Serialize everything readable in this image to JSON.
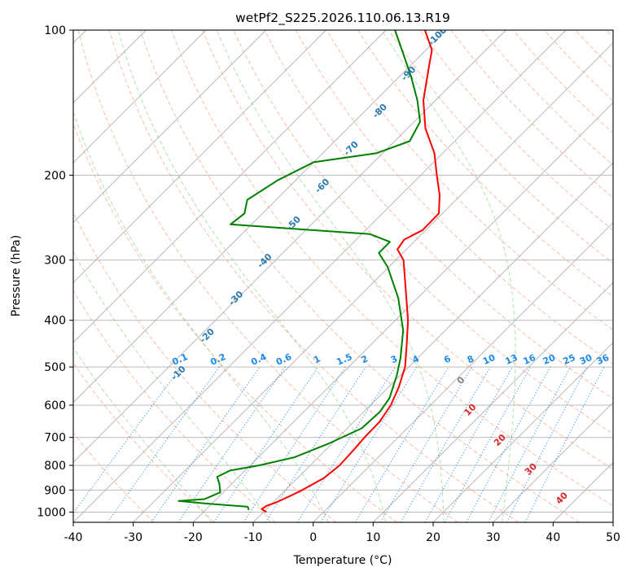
{
  "chart_data": {
    "type": "line",
    "title": "wetPf2_S225.2026.110.06.13.R19",
    "xlabel": "Temperature (°C)",
    "ylabel": "Pressure (hPa)",
    "xlim": [
      -40,
      50
    ],
    "ylim_pressure": [
      1050,
      100
    ],
    "y_scale": "log",
    "skew_description": "skew-T log-p diagram",
    "x_ticks": [
      -40,
      -30,
      -20,
      -10,
      0,
      10,
      20,
      30,
      40,
      50
    ],
    "y_ticks": [
      100,
      200,
      300,
      400,
      500,
      600,
      700,
      800,
      900,
      1000
    ],
    "grid": true,
    "series": [
      {
        "role": "temperature",
        "color": "#ff0000",
        "points": [
          {
            "p": 1000,
            "t": -9.5
          },
          {
            "p": 985,
            "t": -10.8
          },
          {
            "p": 970,
            "t": -10.5
          },
          {
            "p": 955,
            "t": -9.5
          },
          {
            "p": 925,
            "t": -8.2
          },
          {
            "p": 900,
            "t": -7.2
          },
          {
            "p": 850,
            "t": -5.6
          },
          {
            "p": 800,
            "t": -5.1
          },
          {
            "p": 750,
            "t": -5.3
          },
          {
            "p": 700,
            "t": -5.6
          },
          {
            "p": 650,
            "t": -5.7
          },
          {
            "p": 600,
            "t": -6.6
          },
          {
            "p": 550,
            "t": -8.3
          },
          {
            "p": 500,
            "t": -10.6
          },
          {
            "p": 450,
            "t": -14.0
          },
          {
            "p": 400,
            "t": -17.9
          },
          {
            "p": 350,
            "t": -22.9
          },
          {
            "p": 300,
            "t": -28.7
          },
          {
            "p": 285,
            "t": -31.5
          },
          {
            "p": 272,
            "t": -32.0
          },
          {
            "p": 260,
            "t": -30.5
          },
          {
            "p": 240,
            "t": -30.6
          },
          {
            "p": 220,
            "t": -33.5
          },
          {
            "p": 200,
            "t": -37.3
          },
          {
            "p": 180,
            "t": -41.4
          },
          {
            "p": 160,
            "t": -47.0
          },
          {
            "p": 140,
            "t": -52.0
          },
          {
            "p": 120,
            "t": -56.5
          },
          {
            "p": 110,
            "t": -59.0
          },
          {
            "p": 100,
            "t": -63.5
          }
        ]
      },
      {
        "role": "dewpoint",
        "color": "#008000",
        "points": [
          {
            "p": 990,
            "t": -12.8
          },
          {
            "p": 975,
            "t": -13.5
          },
          {
            "p": 960,
            "t": -21.0
          },
          {
            "p": 948,
            "t": -26.0
          },
          {
            "p": 940,
            "t": -22.0
          },
          {
            "p": 910,
            "t": -20.5
          },
          {
            "p": 875,
            "t": -22.0
          },
          {
            "p": 845,
            "t": -23.6
          },
          {
            "p": 820,
            "t": -22.5
          },
          {
            "p": 800,
            "t": -18.5
          },
          {
            "p": 770,
            "t": -14.0
          },
          {
            "p": 720,
            "t": -10.5
          },
          {
            "p": 670,
            "t": -7.6
          },
          {
            "p": 620,
            "t": -7.3
          },
          {
            "p": 580,
            "t": -8.0
          },
          {
            "p": 520,
            "t": -10.6
          },
          {
            "p": 480,
            "t": -12.8
          },
          {
            "p": 420,
            "t": -17.0
          },
          {
            "p": 360,
            "t": -23.2
          },
          {
            "p": 310,
            "t": -30.2
          },
          {
            "p": 290,
            "t": -34.0
          },
          {
            "p": 275,
            "t": -34.0
          },
          {
            "p": 265,
            "t": -38.6
          },
          {
            "p": 253,
            "t": -63.5
          },
          {
            "p": 240,
            "t": -63.0
          },
          {
            "p": 225,
            "t": -64.8
          },
          {
            "p": 205,
            "t": -63.0
          },
          {
            "p": 188,
            "t": -60.0
          },
          {
            "p": 180,
            "t": -51.0
          },
          {
            "p": 170,
            "t": -47.5
          },
          {
            "p": 155,
            "t": -49.0
          },
          {
            "p": 140,
            "t": -53.0
          },
          {
            "p": 125,
            "t": -58.0
          },
          {
            "p": 110,
            "t": -64.0
          },
          {
            "p": 100,
            "t": -68.5
          }
        ]
      }
    ],
    "annotations": {
      "theta_e_labels": [
        "-100",
        "-90",
        "-80",
        "-70",
        "-60",
        "-50",
        "-40",
        "-30",
        "-20",
        "-10"
      ],
      "theta_e_label_color": "#2a7ab0",
      "mixing_ratio_labels": [
        "0.1",
        "0.2",
        "0.4",
        "0.6",
        "1",
        "1.5",
        "2",
        "3",
        "4",
        "6",
        "8",
        "10",
        "13",
        "16",
        "20",
        "25",
        "30",
        "36"
      ],
      "mixing_ratio_label_color": "#1e8ae6",
      "isotherm_labels_red": [
        "10",
        "20",
        "30",
        "40"
      ],
      "isotherm_label_red_color": "#d62728",
      "zero_label": "0",
      "zero_label_color": "#808080"
    }
  }
}
